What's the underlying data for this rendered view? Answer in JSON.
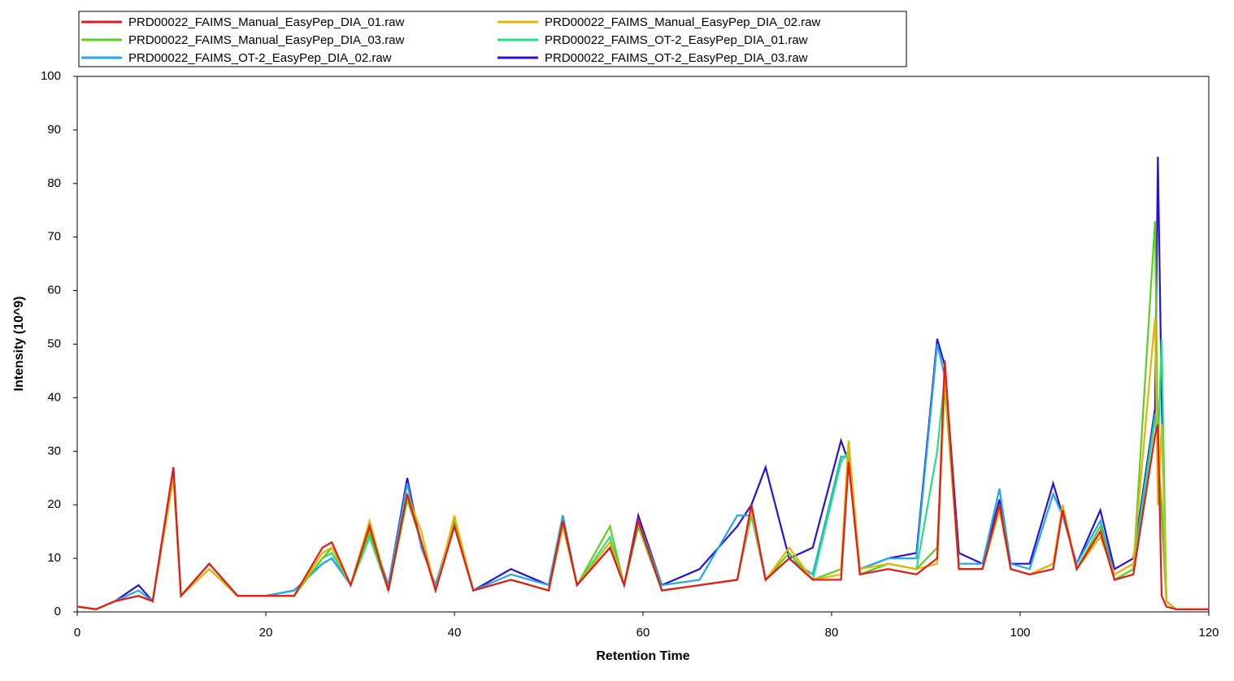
{
  "chart_data": {
    "type": "line",
    "x_label": "Retention Time",
    "y_label": "Intensity (10^9)",
    "xlim": [
      0,
      120
    ],
    "xticks": [
      0,
      20,
      40,
      60,
      80,
      100,
      120
    ],
    "ylim": [
      0,
      100
    ],
    "yticks": [
      0,
      10,
      20,
      30,
      40,
      50,
      60,
      70,
      80,
      90,
      100
    ],
    "x": [
      0,
      2,
      4,
      6.5,
      8,
      10.2,
      11,
      14,
      17,
      20,
      23,
      26,
      27,
      29,
      31,
      33,
      35,
      36.5,
      38,
      40,
      42,
      46,
      50,
      51.5,
      53,
      56.5,
      58,
      59.5,
      62,
      66,
      70,
      71.5,
      73,
      75.5,
      78,
      81,
      81.8,
      83,
      86,
      89,
      91.2,
      92,
      93.5,
      96,
      97.8,
      99,
      101,
      103.5,
      104.5,
      106,
      108.5,
      110,
      112,
      114.3,
      114.6,
      115,
      115.5,
      116.5,
      120
    ],
    "series": [
      {
        "name": "PRD00022_FAIMS_Manual_EasyPep_DIA_01.raw",
        "color": "#e81818",
        "values": [
          1,
          0.5,
          2,
          3,
          2,
          27,
          3,
          9,
          3,
          3,
          3,
          12,
          13,
          5,
          16,
          4,
          22,
          13,
          4,
          16,
          4,
          6,
          4,
          17,
          5,
          12,
          5,
          17,
          4,
          5,
          6,
          20,
          6,
          10,
          6,
          6,
          28,
          7,
          8,
          7,
          10,
          47,
          8,
          8,
          20,
          8,
          7,
          8,
          19,
          8,
          15,
          6,
          7,
          33,
          35,
          3,
          1,
          0.5,
          0.5
        ]
      },
      {
        "name": "PRD00022_FAIMS_Manual_EasyPep_DIA_02.raw",
        "color": "#e8b400",
        "values": [
          1,
          0.5,
          2,
          3,
          2,
          25,
          3,
          8,
          3,
          3,
          3,
          11,
          12,
          5,
          17,
          4,
          22,
          15,
          4,
          18,
          4,
          6,
          4,
          16,
          5,
          13,
          5,
          17,
          4,
          5,
          6,
          19,
          6,
          12,
          6,
          7,
          32,
          8,
          9,
          8,
          9,
          44,
          8,
          8,
          19,
          8,
          7,
          9,
          20,
          8,
          14,
          7,
          9,
          55,
          20,
          35,
          2,
          0.5,
          0.5
        ]
      },
      {
        "name": "PRD00022_FAIMS_Manual_EasyPep_DIA_03.raw",
        "color": "#5ad01a",
        "values": [
          1,
          0.5,
          2,
          3,
          2,
          26,
          3,
          9,
          3,
          3,
          3,
          10,
          12,
          5,
          15,
          4,
          21,
          13,
          4,
          17,
          4,
          6,
          4,
          17,
          5,
          16,
          5,
          16,
          4,
          5,
          6,
          19,
          6,
          11,
          6,
          8,
          32,
          7,
          9,
          8,
          12,
          42,
          8,
          8,
          20,
          8,
          7,
          9,
          19,
          8,
          16,
          6,
          8,
          73,
          30,
          20,
          2,
          0.5,
          0.5
        ]
      },
      {
        "name": "PRD00022_FAIMS_OT-2_EasyPep_DIA_01.raw",
        "color": "#20e080",
        "values": [
          1,
          0.5,
          2,
          3,
          2,
          25,
          3,
          8,
          3,
          3,
          3,
          10,
          11,
          5,
          14,
          4,
          21,
          13,
          4,
          16,
          4,
          6,
          4,
          17,
          5,
          14,
          5,
          16,
          4,
          5,
          6,
          18,
          6,
          10,
          6,
          28,
          30,
          7,
          9,
          8,
          30,
          44,
          8,
          8,
          20,
          8,
          7,
          9,
          19,
          8,
          15,
          6,
          8,
          36,
          30,
          51,
          2,
          0.5,
          0.5
        ]
      },
      {
        "name": "PRD00022_FAIMS_OT-2_EasyPep_DIA_02.raw",
        "color": "#20a8e8",
        "values": [
          1,
          0.5,
          2,
          4,
          2,
          27,
          3,
          9,
          3,
          3,
          4,
          9,
          10,
          5,
          14,
          5,
          24,
          12,
          5,
          17,
          4,
          7,
          5,
          18,
          5,
          12,
          5,
          17,
          5,
          6,
          18,
          18,
          6,
          10,
          7,
          29,
          29,
          8,
          10,
          10,
          50,
          44,
          9,
          9,
          23,
          9,
          8,
          22,
          18,
          9,
          17,
          7,
          9,
          37,
          30,
          18,
          2,
          0.5,
          0.5
        ]
      },
      {
        "name": "PRD00022_FAIMS_OT-2_EasyPep_DIA_03.raw",
        "color": "#2a10d8",
        "values": [
          1,
          0.5,
          2,
          5,
          2,
          27,
          3,
          9,
          3,
          3,
          4,
          9,
          10,
          5,
          15,
          5,
          25,
          12,
          5,
          17,
          4,
          8,
          5,
          18,
          5,
          12,
          5,
          18,
          5,
          8,
          16,
          20,
          27,
          10,
          12,
          32,
          28,
          8,
          10,
          11,
          51,
          46,
          11,
          9,
          21,
          9,
          9,
          24,
          18,
          9,
          19,
          8,
          10,
          38,
          85,
          40,
          2,
          0.5,
          0.5
        ]
      }
    ]
  }
}
